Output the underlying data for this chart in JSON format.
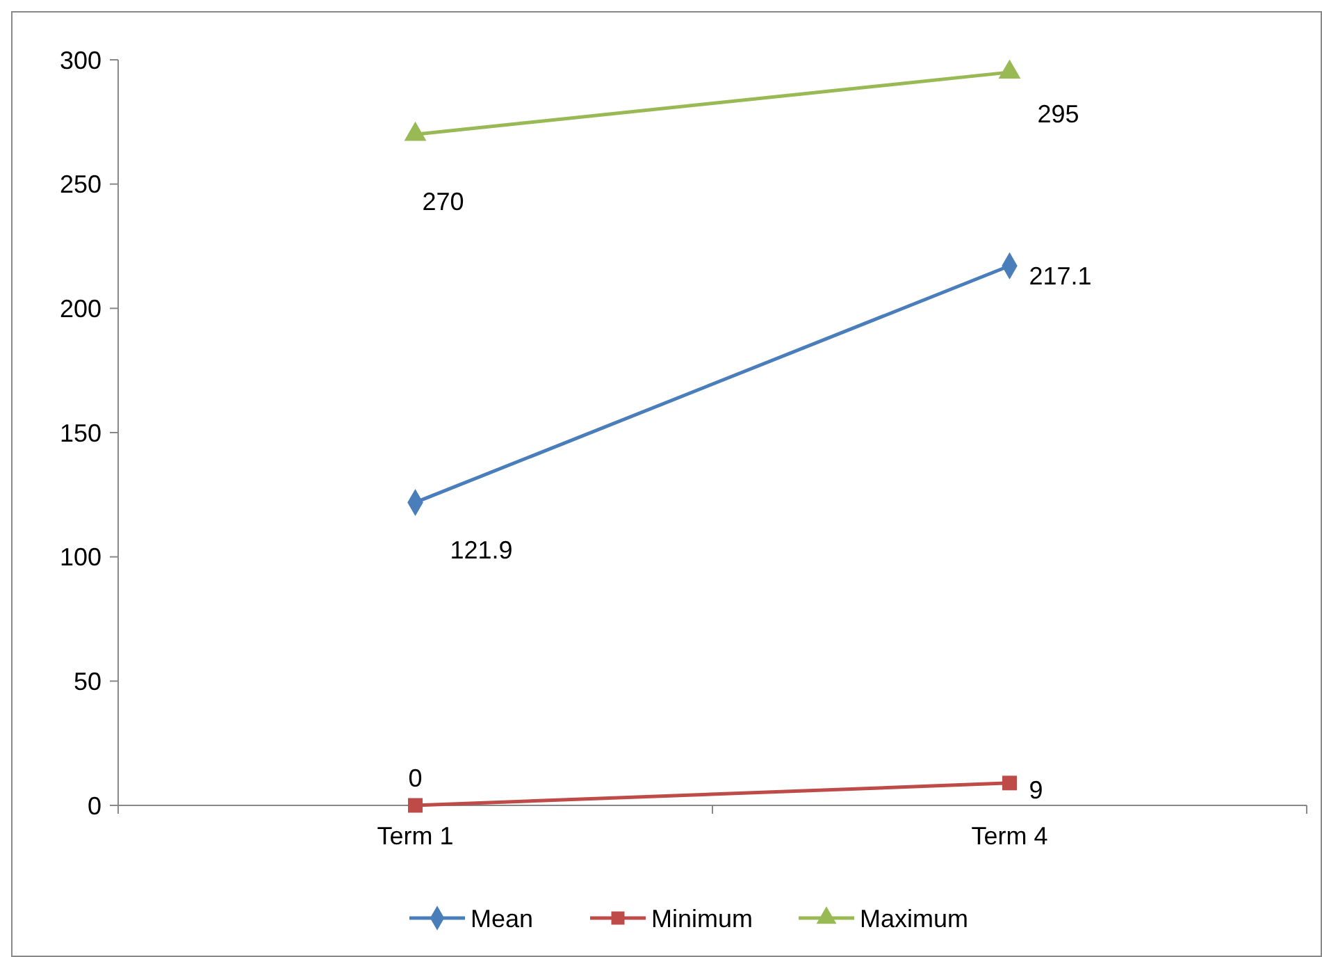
{
  "chart_data": {
    "type": "line",
    "categories": [
      "Term 1",
      "Term 4"
    ],
    "series": [
      {
        "name": "Mean",
        "color": "#4a7ebb",
        "values": [
          121.9,
          217.1
        ],
        "marker": "diamond"
      },
      {
        "name": "Minimum",
        "color": "#be4b48",
        "values": [
          0,
          9
        ],
        "marker": "square"
      },
      {
        "name": "Maximum",
        "color": "#98b954",
        "values": [
          270,
          295
        ],
        "marker": "triangle"
      }
    ],
    "ylim": [
      0,
      300
    ],
    "yticks": [
      0,
      50,
      100,
      150,
      200,
      250,
      300
    ],
    "data_labels": true,
    "legend": "bottom",
    "grid": false
  }
}
